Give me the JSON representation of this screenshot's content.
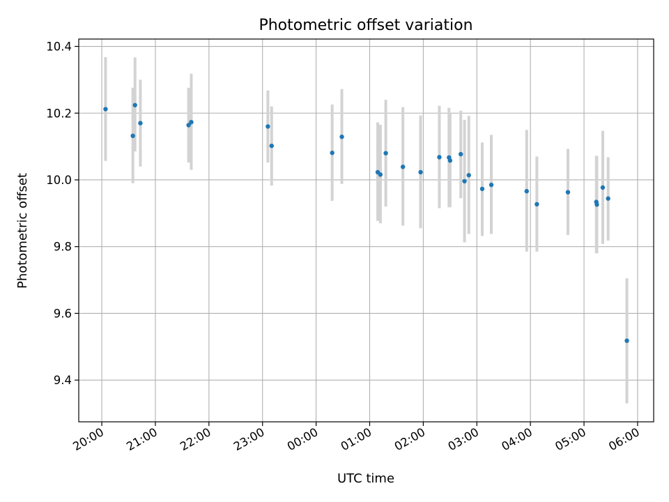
{
  "chart_data": {
    "type": "scatter",
    "title": "Photometric offset variation",
    "xlabel": "UTC time",
    "ylabel": "Photometric offset",
    "x_tick_labels": [
      "20:00",
      "21:00",
      "22:00",
      "23:00",
      "00:00",
      "01:00",
      "02:00",
      "03:00",
      "04:00",
      "05:00",
      "06:00"
    ],
    "x_tick_hours": [
      20,
      21,
      22,
      23,
      24,
      25,
      26,
      27,
      28,
      29,
      30
    ],
    "xlim_hours": [
      19.57,
      30.3
    ],
    "y_ticks": [
      9.4,
      9.6,
      9.8,
      10.0,
      10.2,
      10.4
    ],
    "y_tick_labels": [
      "9.4",
      "9.6",
      "9.8",
      "10.0",
      "10.2",
      "10.4"
    ],
    "ylim": [
      9.275,
      10.422
    ],
    "grid": true,
    "colors": {
      "point": "#1f77b4",
      "errorbar": "#d3d3d3",
      "grid": "#b0b0b0"
    },
    "points": [
      {
        "t": 20.07,
        "y": 10.212,
        "lo": 10.057,
        "hi": 10.368
      },
      {
        "t": 20.58,
        "y": 10.132,
        "lo": 9.99,
        "hi": 10.276
      },
      {
        "t": 20.62,
        "y": 10.224,
        "lo": 10.085,
        "hi": 10.367
      },
      {
        "t": 20.72,
        "y": 10.17,
        "lo": 10.04,
        "hi": 10.3
      },
      {
        "t": 21.62,
        "y": 10.164,
        "lo": 10.052,
        "hi": 10.276
      },
      {
        "t": 21.67,
        "y": 10.173,
        "lo": 10.03,
        "hi": 10.318
      },
      {
        "t": 23.1,
        "y": 10.16,
        "lo": 10.052,
        "hi": 10.268
      },
      {
        "t": 23.17,
        "y": 10.102,
        "lo": 9.983,
        "hi": 10.22
      },
      {
        "t": 24.3,
        "y": 10.081,
        "lo": 9.937,
        "hi": 10.226
      },
      {
        "t": 24.48,
        "y": 10.129,
        "lo": 9.988,
        "hi": 10.272
      },
      {
        "t": 25.15,
        "y": 10.023,
        "lo": 9.877,
        "hi": 10.172
      },
      {
        "t": 25.2,
        "y": 10.016,
        "lo": 9.87,
        "hi": 10.165
      },
      {
        "t": 25.3,
        "y": 10.08,
        "lo": 9.92,
        "hi": 10.24
      },
      {
        "t": 25.62,
        "y": 10.039,
        "lo": 9.863,
        "hi": 10.218
      },
      {
        "t": 25.95,
        "y": 10.023,
        "lo": 9.855,
        "hi": 10.193
      },
      {
        "t": 26.3,
        "y": 10.068,
        "lo": 9.915,
        "hi": 10.222
      },
      {
        "t": 26.48,
        "y": 10.067,
        "lo": 9.918,
        "hi": 10.216
      },
      {
        "t": 26.5,
        "y": 10.058,
        "lo": 9.918,
        "hi": 10.2
      },
      {
        "t": 26.7,
        "y": 10.077,
        "lo": 9.945,
        "hi": 10.207
      },
      {
        "t": 26.77,
        "y": 9.996,
        "lo": 9.813,
        "hi": 10.18
      },
      {
        "t": 26.85,
        "y": 10.014,
        "lo": 9.838,
        "hi": 10.192
      },
      {
        "t": 27.1,
        "y": 9.973,
        "lo": 9.832,
        "hi": 10.112
      },
      {
        "t": 27.27,
        "y": 9.985,
        "lo": 9.838,
        "hi": 10.135
      },
      {
        "t": 27.93,
        "y": 9.966,
        "lo": 9.785,
        "hi": 10.15
      },
      {
        "t": 28.12,
        "y": 9.927,
        "lo": 9.785,
        "hi": 10.07
      },
      {
        "t": 28.7,
        "y": 9.963,
        "lo": 9.835,
        "hi": 10.093
      },
      {
        "t": 29.23,
        "y": 9.934,
        "lo": 9.78,
        "hi": 10.072
      },
      {
        "t": 29.24,
        "y": 9.926,
        "lo": 9.78,
        "hi": 10.072
      },
      {
        "t": 29.35,
        "y": 9.977,
        "lo": 9.808,
        "hi": 10.147
      },
      {
        "t": 29.45,
        "y": 9.944,
        "lo": 9.818,
        "hi": 10.068
      },
      {
        "t": 29.8,
        "y": 9.518,
        "lo": 9.33,
        "hi": 9.705
      }
    ]
  }
}
